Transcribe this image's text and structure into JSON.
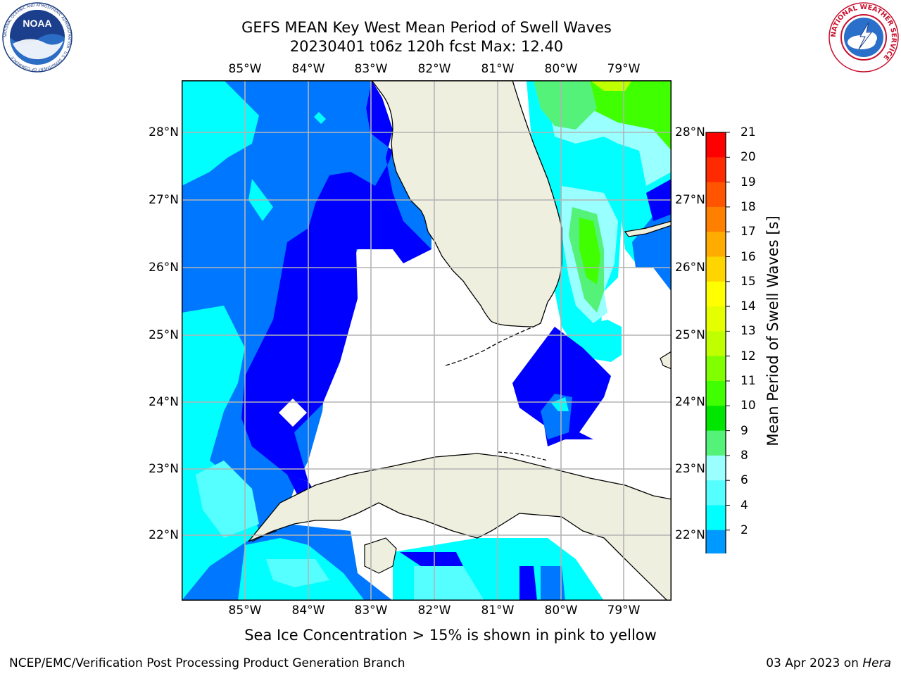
{
  "title": {
    "line1": "GEFS MEAN Key West Mean Period of Swell Waves",
    "line2": "20230401 t06z 120h fcst   Max: 12.40"
  },
  "map": {
    "lon_labels": [
      "85°W",
      "84°W",
      "83°W",
      "82°W",
      "81°W",
      "80°W",
      "79°W"
    ],
    "lat_labels": [
      "28°N",
      "27°N",
      "26°N",
      "25°N",
      "24°N",
      "23°N",
      "22°N"
    ],
    "colors": {
      "land": "#efefdf",
      "water_no_data": "#ffffff",
      "grid": "#b4b4b4",
      "coast": "#000000"
    }
  },
  "colorbar": {
    "label": "Mean Period of Swell Waves [s]",
    "ticks": [
      "21",
      "20",
      "19",
      "18",
      "17",
      "16",
      "15",
      "14",
      "13",
      "12",
      "11",
      "10",
      "9",
      "8",
      "6",
      "4",
      "2"
    ],
    "colors": [
      "#ff0000",
      "#ff2a00",
      "#ff5500",
      "#ff8000",
      "#ffab00",
      "#ffd500",
      "#ffff00",
      "#e6ff00",
      "#bfff00",
      "#80ff00",
      "#40ff00",
      "#00e600",
      "#55f27a",
      "#99ffff",
      "#55ffff",
      "#00ffff",
      "#0099ff",
      "#0000ff"
    ]
  },
  "sea_ice_note": "Sea Ice Concentration > 15% is shown in pink to yellow",
  "footer": {
    "left": "NCEP/EMC/Verification Post Processing Product Generation Branch",
    "right_date": "03 Apr 2023 on ",
    "right_host": "Hera"
  },
  "logos": {
    "noaa_text": "NOAA",
    "noaa_ring": "NATIONAL OCEANIC AND ATMOSPHERIC ADMINISTRATION · U.S. DEPARTMENT OF COMMERCE ·",
    "nws_ring": "NATIONAL WEATHER SERVICE"
  }
}
